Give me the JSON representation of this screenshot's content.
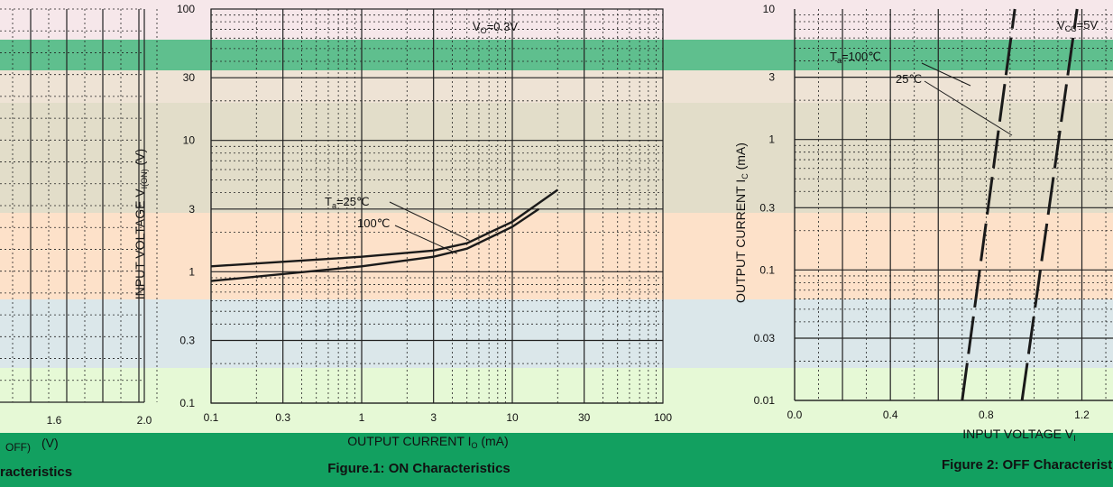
{
  "colors": {
    "band_green_dark": "#5fbf8e",
    "band_green": "#12a060",
    "band_tan": "#eee3d5",
    "band_khaki": "#e2ddc9",
    "band_peach": "#fde1c9",
    "band_blue": "#dbe7ea",
    "band_lime": "#e6f9d6",
    "band_pink": "#f6e7ea",
    "curve": "#1a1a1a",
    "grid": "#222222"
  },
  "left_fragment": {
    "ticks": [
      "1.6",
      "2.0"
    ],
    "axis_label": "(V)",
    "axis_sub": "OFF)",
    "caption": "racteristics"
  },
  "chart_data": [
    {
      "type": "line",
      "title": "",
      "caption": "Figure.1:   ON Characteristics",
      "xlabel": "OUTPUT CURRENT  I",
      "xlabel_sub": "O",
      "xlabel_unit": "(mA)",
      "ylabel": "INPUT VOLTAGE  V",
      "ylabel_sub": "I(ON)",
      "ylabel_unit": "(V)",
      "xscale": "log",
      "yscale": "log",
      "xlim": [
        0.1,
        100
      ],
      "ylim": [
        0.1,
        100
      ],
      "x_ticks": [
        "0.1",
        "0.3",
        "1",
        "3",
        "10",
        "30",
        "100"
      ],
      "y_ticks": [
        "0.1",
        "0.3",
        "1",
        "3",
        "10",
        "30",
        "100"
      ],
      "condition": "V",
      "condition_sub": "O",
      "condition_value": "=0.3V",
      "series": [
        {
          "name": "T",
          "name_sub": "a",
          "name_value": "=25℃",
          "x": [
            0.1,
            1,
            3,
            5,
            10,
            20
          ],
          "y": [
            1.1,
            1.3,
            1.45,
            1.65,
            2.4,
            4.2
          ]
        },
        {
          "name": "100℃",
          "x": [
            0.1,
            1,
            3,
            5,
            10,
            15
          ],
          "y": [
            0.85,
            1.1,
            1.3,
            1.5,
            2.2,
            3.0
          ]
        }
      ],
      "grid": true
    },
    {
      "type": "line",
      "title": "",
      "caption": "Figure 2:  OFF Characteristics",
      "xlabel": "INPUT VOLTAGE  V",
      "xlabel_sub": "I",
      "ylabel": "OUTPUT CURRENT  I",
      "ylabel_sub": "C",
      "ylabel_unit": "(mA)",
      "xscale": "linear",
      "yscale": "log",
      "xlim": [
        0.0,
        1.4
      ],
      "ylim": [
        0.01,
        10
      ],
      "x_ticks": [
        "0.0",
        "0.4",
        "0.8",
        "1.2"
      ],
      "y_ticks": [
        "0.01",
        "0.03",
        "0.1",
        "0.3",
        "1",
        "3",
        "10"
      ],
      "condition": "V",
      "condition_sub": "CC",
      "condition_value": "=5V",
      "series": [
        {
          "name": "T",
          "name_sub": "a",
          "name_value": "=100℃",
          "x": [
            0.7,
            0.92
          ],
          "y": [
            0.01,
            10
          ]
        },
        {
          "name": "25℃",
          "x": [
            0.95,
            1.18
          ],
          "y": [
            0.01,
            10
          ]
        }
      ],
      "grid": true
    }
  ]
}
